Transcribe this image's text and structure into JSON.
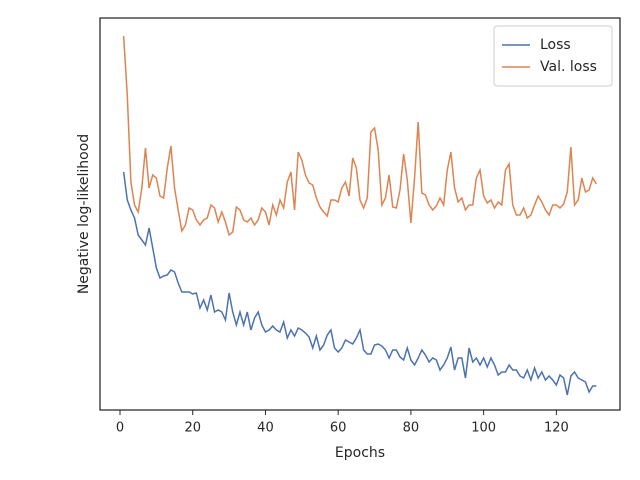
{
  "chart_data": {
    "type": "line",
    "x_label": "Epochs",
    "y_label": "Negative log-likelihood",
    "x": [
      1,
      2,
      3,
      4,
      5,
      6,
      7,
      8,
      9,
      10,
      11,
      12,
      13,
      14,
      15,
      16,
      17,
      18,
      19,
      20,
      21,
      22,
      23,
      24,
      25,
      26,
      27,
      28,
      29,
      30,
      31,
      32,
      33,
      34,
      35,
      36,
      37,
      38,
      39,
      40,
      41,
      42,
      43,
      44,
      45,
      46,
      47,
      48,
      49,
      50,
      51,
      52,
      53,
      54,
      55,
      56,
      57,
      58,
      59,
      60,
      61,
      62,
      63,
      64,
      65,
      66,
      67,
      68,
      69,
      70,
      71,
      72,
      73,
      74,
      75,
      76,
      77,
      78,
      79,
      80,
      81,
      82,
      83,
      84,
      85,
      86,
      87,
      88,
      89,
      90,
      91,
      92,
      93,
      94,
      95,
      96,
      97,
      98,
      99,
      100,
      101,
      102,
      103,
      104,
      105,
      106,
      107,
      108,
      109,
      110,
      111,
      112,
      113,
      114,
      115,
      116,
      117,
      118,
      119,
      120,
      121,
      122,
      123,
      124,
      125,
      126,
      127,
      128,
      129,
      130,
      131
    ],
    "series": [
      {
        "name": "Loss",
        "color": "#4c72b0",
        "values": [
          238,
          210,
          200,
          192,
          175,
          170,
          165,
          182,
          162,
          142,
          132,
          134,
          135,
          140,
          138,
          127,
          118,
          118,
          118,
          116,
          117,
          102,
          110,
          100,
          115,
          98,
          100,
          98,
          90,
          117,
          98,
          85,
          98,
          85,
          98,
          80,
          92,
          98,
          85,
          78,
          80,
          84,
          80,
          78,
          88,
          72,
          80,
          74,
          82,
          80,
          77,
          73,
          62,
          74,
          60,
          65,
          75,
          80,
          62,
          58,
          62,
          70,
          68,
          66,
          72,
          80,
          60,
          56,
          56,
          65,
          66,
          64,
          60,
          52,
          60,
          60,
          53,
          50,
          62,
          50,
          45,
          52,
          60,
          55,
          48,
          52,
          50,
          40,
          45,
          52,
          63,
          40,
          52,
          52,
          32,
          62,
          48,
          52,
          45,
          52,
          43,
          52,
          45,
          35,
          38,
          38,
          45,
          40,
          40,
          34,
          32,
          40,
          30,
          42,
          32,
          38,
          30,
          34,
          30,
          25,
          35,
          32,
          15,
          34,
          38,
          32,
          30,
          28,
          18,
          24,
          24
        ]
      },
      {
        "name": "Val. loss",
        "color": "#dd8452",
        "values": [
          374,
          315,
          228,
          205,
          198,
          222,
          262,
          222,
          235,
          232,
          214,
          212,
          242,
          264,
          222,
          200,
          179,
          185,
          202,
          200,
          190,
          185,
          190,
          192,
          205,
          202,
          188,
          198,
          188,
          175,
          178,
          203,
          200,
          190,
          188,
          192,
          185,
          190,
          202,
          198,
          185,
          205,
          195,
          210,
          202,
          228,
          238,
          200,
          258,
          250,
          235,
          227,
          225,
          212,
          203,
          198,
          194,
          210,
          210,
          208,
          222,
          228,
          214,
          252,
          242,
          210,
          202,
          212,
          278,
          282,
          260,
          205,
          212,
          235,
          203,
          202,
          220,
          256,
          230,
          187,
          232,
          288,
          217,
          215,
          205,
          200,
          204,
          212,
          205,
          240,
          258,
          222,
          208,
          212,
          200,
          205,
          205,
          232,
          240,
          214,
          207,
          210,
          202,
          208,
          205,
          240,
          246,
          205,
          195,
          195,
          202,
          192,
          195,
          205,
          214,
          208,
          200,
          195,
          205,
          205,
          202,
          206,
          218,
          263,
          205,
          210,
          232,
          218,
          220,
          232,
          226
        ]
      }
    ],
    "xlim": [
      -5.5,
      137.5
    ],
    "xticks": [
      0,
      20,
      40,
      60,
      80,
      100,
      120
    ],
    "ylim": [
      0,
      392
    ],
    "legend": "upper right"
  }
}
